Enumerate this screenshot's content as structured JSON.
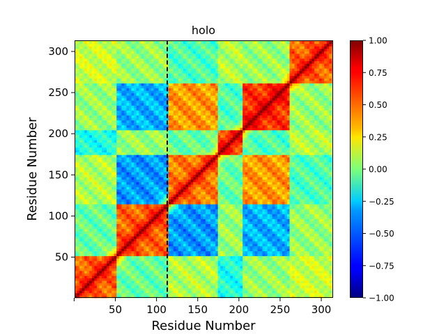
{
  "chart_data": {
    "type": "heatmap",
    "title": "holo",
    "xlabel": "Residue Number",
    "ylabel": "Residue Number",
    "xlim": [
      1,
      313
    ],
    "ylim": [
      1,
      313
    ],
    "n_residues": 313,
    "x_ticks": [
      0,
      50,
      100,
      150,
      200,
      250,
      300
    ],
    "x_tick_labels": [
      "",
      "50",
      "100",
      "150",
      "200",
      "250",
      "300"
    ],
    "y_ticks": [
      50,
      100,
      150,
      200,
      250,
      300
    ],
    "y_tick_labels": [
      "50",
      "100",
      "150",
      "200",
      "250",
      "300"
    ],
    "colorbar": {
      "colormap": "jet",
      "vmin": -1.0,
      "vmax": 1.0,
      "ticks": [
        1.0,
        0.75,
        0.5,
        0.25,
        0.0,
        -0.25,
        -0.5,
        -0.75,
        -1.0
      ],
      "tick_labels": [
        "1.00",
        "0.75",
        "0.50",
        "0.25",
        "0.00",
        "−0.25",
        "−0.50",
        "−0.75",
        "−1.00"
      ]
    },
    "diagonal": "strong positive correlation (1.0) along residue i = j",
    "vertical_marker": {
      "x": 113,
      "style": "dashed",
      "color": "#000000"
    },
    "block_boundaries": [
      52,
      113,
      175,
      205,
      262
    ],
    "blocks": [
      [
        0.55,
        -0.05,
        0.1,
        -0.2,
        0.05,
        0.15
      ],
      [
        -0.05,
        0.55,
        -0.45,
        0.05,
        -0.4,
        0.05
      ],
      [
        0.1,
        -0.45,
        0.5,
        -0.05,
        0.45,
        -0.1
      ],
      [
        -0.2,
        0.05,
        -0.05,
        0.6,
        -0.1,
        0.1
      ],
      [
        0.05,
        -0.4,
        0.45,
        -0.1,
        0.65,
        0.05
      ],
      [
        0.15,
        0.05,
        -0.1,
        0.1,
        0.05,
        0.55
      ]
    ]
  }
}
